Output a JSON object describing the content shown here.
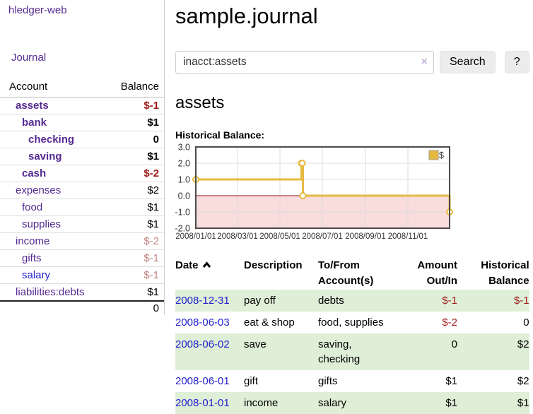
{
  "sidebar": {
    "brand": "hledger-web",
    "nav": {
      "journal": "Journal"
    },
    "accounts_table": {
      "headers": {
        "account": "Account",
        "balance": "Balance"
      },
      "rows": [
        {
          "name": "assets",
          "balance": "$-1",
          "depth": 1,
          "bold": true,
          "blue": false
        },
        {
          "name": "bank",
          "balance": "$1",
          "depth": 2,
          "bold": true,
          "blue": false
        },
        {
          "name": "checking",
          "balance": "0",
          "depth": 3,
          "bold": true,
          "blue": false
        },
        {
          "name": "saving",
          "balance": "$1",
          "depth": 3,
          "bold": true,
          "blue": false
        },
        {
          "name": "cash",
          "balance": "$-2",
          "depth": 2,
          "bold": true,
          "blue": false
        },
        {
          "name": "expenses",
          "balance": "$2",
          "depth": 1,
          "bold": false,
          "blue": false
        },
        {
          "name": "food",
          "balance": "$1",
          "depth": 2,
          "bold": false,
          "blue": false
        },
        {
          "name": "supplies",
          "balance": "$1",
          "depth": 2,
          "bold": false,
          "blue": false
        },
        {
          "name": "income",
          "balance": "$-2",
          "depth": 1,
          "bold": false,
          "blue": false
        },
        {
          "name": "gifts",
          "balance": "$-1",
          "depth": 2,
          "bold": false,
          "blue": false
        },
        {
          "name": "salary",
          "balance": "$-1",
          "depth": 2,
          "bold": false,
          "blue": true
        },
        {
          "name": "liabilities:debts",
          "balance": "$1",
          "depth": 1,
          "bold": false,
          "blue": false
        }
      ],
      "total": "0"
    }
  },
  "header": {
    "title": "sample.journal"
  },
  "search": {
    "value": "inacct:assets",
    "clear_label": "×",
    "button": "Search",
    "help_button": "?"
  },
  "account_page": {
    "heading": "assets",
    "chart_label": "Historical Balance:"
  },
  "chart_data": {
    "type": "line",
    "step": true,
    "title": "Historical Balance",
    "series": [
      {
        "name": "$",
        "points": [
          [
            "2008-01-01",
            1
          ],
          [
            "2008-06-01",
            2
          ],
          [
            "2008-06-02",
            2
          ],
          [
            "2008-06-03",
            0
          ],
          [
            "2008-12-31",
            -1
          ]
        ]
      }
    ],
    "x_range": [
      "2008-01-01",
      "2008-12-31"
    ],
    "ylim": [
      -2,
      3
    ],
    "y_ticks": [
      3,
      2,
      1,
      0,
      -1,
      -2
    ],
    "x_ticks": [
      "2008/01/01",
      "2008/03/01",
      "2008/05/01",
      "2008/07/01",
      "2008/09/01",
      "2008/11/01"
    ],
    "legend_position": "top-right",
    "grid": true,
    "colors": {
      "line": "#e6b93f",
      "negative_fill": "#f9dcdc",
      "zero_line": "#8b1a1a",
      "grid": "#dddddd",
      "border": "#4a4a4a"
    }
  },
  "register": {
    "headers": [
      "Date",
      "Description",
      "To/From Account(s)",
      "Amount Out/In",
      "Historical Balance"
    ],
    "rows": [
      {
        "date": "2008-12-31",
        "description": "pay off",
        "accounts": "debts",
        "amount": "$-1",
        "balance": "$-1",
        "shaded": true
      },
      {
        "date": "2008-06-03",
        "description": "eat & shop",
        "accounts": "food, supplies",
        "amount": "$-2",
        "balance": "0",
        "shaded": false
      },
      {
        "date": "2008-06-02",
        "description": "save",
        "accounts": "saving,\nchecking",
        "amount": "0",
        "balance": "$2",
        "shaded": true
      },
      {
        "date": "2008-06-01",
        "description": "gift",
        "accounts": "gifts",
        "amount": "$1",
        "balance": "$2",
        "shaded": false
      },
      {
        "date": "2008-01-01",
        "description": "income",
        "accounts": "salary",
        "amount": "$1",
        "balance": "$1",
        "shaded": true
      }
    ]
  }
}
